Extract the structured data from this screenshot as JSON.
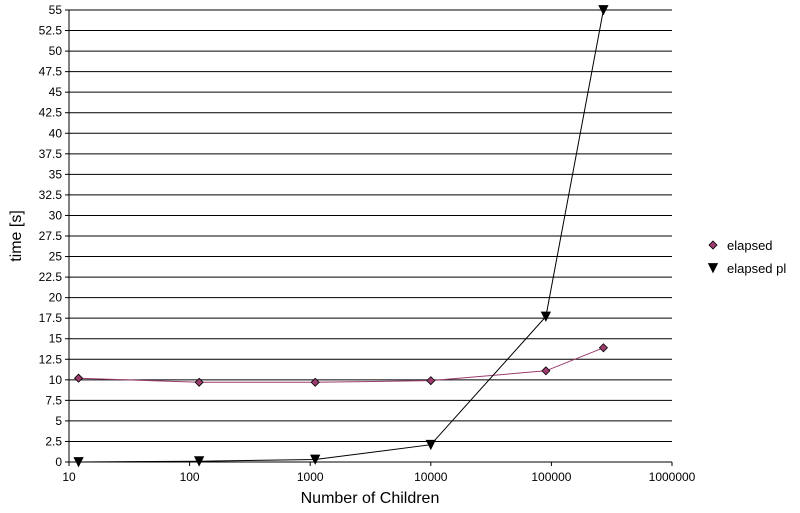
{
  "chart_data": {
    "type": "line",
    "title": "",
    "xlabel": "Number of Children",
    "ylabel": "time [s]",
    "xscale": "log",
    "xlim": [
      10,
      1000000
    ],
    "ylim": [
      0,
      55
    ],
    "x_ticks": [
      "10",
      "100",
      "1000",
      "10000",
      "100000",
      "1000000"
    ],
    "y_ticks": [
      "0",
      "2.5",
      "5",
      "7.5",
      "10",
      "12.5",
      "15",
      "17.5",
      "20",
      "22.5",
      "25",
      "27.5",
      "30",
      "32.5",
      "35",
      "37.5",
      "40",
      "42.5",
      "45",
      "47.5",
      "50",
      "52.5",
      "55"
    ],
    "grid": "horizontal",
    "legend_position": "right",
    "series": [
      {
        "name": "elapsed",
        "color": "#9b3b6e",
        "marker": "diamond",
        "x": [
          12,
          120,
          1100,
          10000,
          90000,
          270000
        ],
        "y": [
          10.2,
          9.7,
          9.7,
          9.9,
          11.1,
          13.9
        ]
      },
      {
        "name": "elapsed pl",
        "color": "#000000",
        "marker": "triangle-down",
        "x": [
          12,
          120,
          1100,
          10000,
          90000,
          270000
        ],
        "y": [
          0.0,
          0.1,
          0.3,
          2.1,
          17.7,
          55.0
        ]
      }
    ]
  }
}
